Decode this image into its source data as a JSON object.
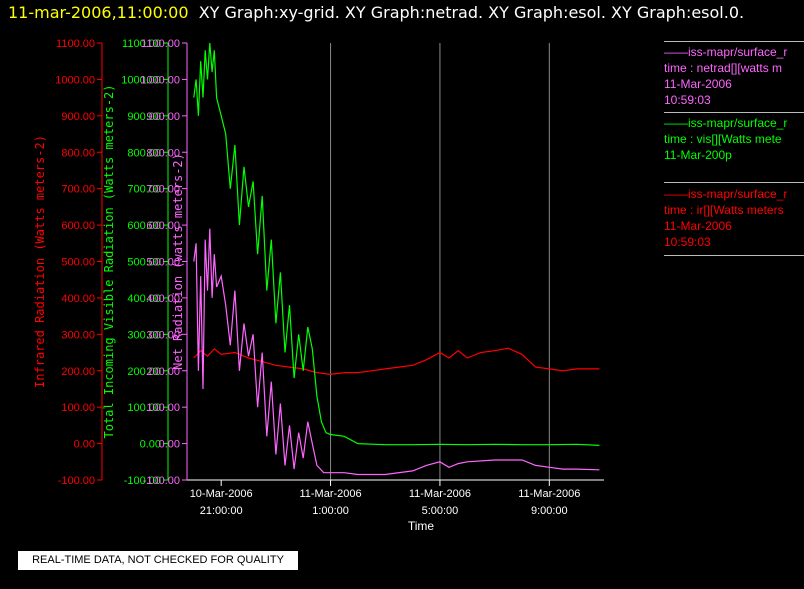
{
  "header": {
    "date_title": "11-mar-2006,11:00:00",
    "graph_titles": "XY Graph:xy-grid.  XY Graph:netrad.  XY Graph:esol.  XY Graph:esol.0."
  },
  "legend": {
    "netrad": {
      "line1": "——iss-mapr/surface_r",
      "line2": "time : netrad[][watts m",
      "line3": "11-Mar-2006",
      "line4": "10:59:03",
      "color": "#ff66ff"
    },
    "vis": {
      "line1": "——iss-mapr/surface_r",
      "line2": "time : vis[][Watts mete",
      "line3": "11-Mar-200p",
      "color": "#00ff00"
    },
    "ir": {
      "line1": "——iss-mapr/surface_r",
      "line2": "time : ir[][Watts meters",
      "line3": "11-Mar-2006",
      "line4": "10:59:03",
      "color": "#ff0000"
    }
  },
  "footer": {
    "note": "REAL-TIME DATA, NOT CHECKED FOR QUALITY"
  },
  "chart_data": {
    "type": "line",
    "xlabel": "Time",
    "x_range": [
      "2006-03-10 19:45",
      "2006-03-11 11:00"
    ],
    "x_ticks": [
      {
        "x": "2006-03-10 21:00",
        "label_line1": "10-Mar-2006",
        "label_line2": "21:00:00"
      },
      {
        "x": "2006-03-11 01:00",
        "label_line1": "11-Mar-2006",
        "label_line2": "1:00:00"
      },
      {
        "x": "2006-03-11 05:00",
        "label_line1": "11-Mar-2006",
        "label_line2": "5:00:00"
      },
      {
        "x": "2006-03-11 09:00",
        "label_line1": "11-Mar-2006",
        "label_line2": "9:00:00"
      }
    ],
    "grid": "vertical",
    "ylim": [
      -100,
      1100
    ],
    "y_ticks": [
      "-100.00",
      "0.00",
      "100.00",
      "200.00",
      "300.00",
      "400.00",
      "500.00",
      "600.00",
      "700.00",
      "800.00",
      "900.00",
      "1000.00",
      "1100.00"
    ],
    "axes": [
      {
        "key": "ir",
        "label": "Infrared Radiation (Watts meters-2)",
        "color": "#ff0000"
      },
      {
        "key": "vis",
        "label": "Total Incoming Visible Radiation (Watts meters-2)",
        "color": "#00ff00"
      },
      {
        "key": "netrad",
        "label": "Net Radiation (watts meters-2)",
        "color": "#ff66ff"
      }
    ],
    "series": [
      {
        "key": "ir",
        "color": "#ff0000",
        "points": [
          [
            "2006-03-10 20:00",
            235
          ],
          [
            "2006-03-10 20:15",
            255
          ],
          [
            "2006-03-10 20:30",
            240
          ],
          [
            "2006-03-10 20:45",
            260
          ],
          [
            "2006-03-10 21:00",
            245
          ],
          [
            "2006-03-10 21:30",
            250
          ],
          [
            "2006-03-10 22:00",
            235
          ],
          [
            "2006-03-10 22:30",
            225
          ],
          [
            "2006-03-10 23:00",
            215
          ],
          [
            "2006-03-10 23:30",
            210
          ],
          [
            "2006-03-11 00:00",
            205
          ],
          [
            "2006-03-11 00:30",
            195
          ],
          [
            "2006-03-11 01:00",
            190
          ],
          [
            "2006-03-11 01:30",
            195
          ],
          [
            "2006-03-11 02:00",
            195
          ],
          [
            "2006-03-11 02:30",
            200
          ],
          [
            "2006-03-11 03:00",
            205
          ],
          [
            "2006-03-11 03:30",
            210
          ],
          [
            "2006-03-11 04:00",
            215
          ],
          [
            "2006-03-11 04:30",
            230
          ],
          [
            "2006-03-11 05:00",
            250
          ],
          [
            "2006-03-11 05:20",
            235
          ],
          [
            "2006-03-11 05:40",
            255
          ],
          [
            "2006-03-11 06:00",
            235
          ],
          [
            "2006-03-11 06:30",
            250
          ],
          [
            "2006-03-11 07:00",
            255
          ],
          [
            "2006-03-11 07:30",
            262
          ],
          [
            "2006-03-11 08:00",
            245
          ],
          [
            "2006-03-11 08:30",
            210
          ],
          [
            "2006-03-11 09:00",
            205
          ],
          [
            "2006-03-11 09:30",
            200
          ],
          [
            "2006-03-11 10:00",
            205
          ],
          [
            "2006-03-11 10:30",
            205
          ],
          [
            "2006-03-11 10:50",
            205
          ]
        ]
      },
      {
        "key": "vis",
        "color": "#00ff00",
        "points": [
          [
            "2006-03-10 20:00",
            950
          ],
          [
            "2006-03-10 20:05",
            1000
          ],
          [
            "2006-03-10 20:10",
            900
          ],
          [
            "2006-03-10 20:15",
            1050
          ],
          [
            "2006-03-10 20:20",
            950
          ],
          [
            "2006-03-10 20:25",
            1080
          ],
          [
            "2006-03-10 20:30",
            1000
          ],
          [
            "2006-03-10 20:35",
            1100
          ],
          [
            "2006-03-10 20:40",
            1020
          ],
          [
            "2006-03-10 20:45",
            1080
          ],
          [
            "2006-03-10 20:50",
            950
          ],
          [
            "2006-03-10 21:00",
            900
          ],
          [
            "2006-03-10 21:10",
            850
          ],
          [
            "2006-03-10 21:20",
            700
          ],
          [
            "2006-03-10 21:30",
            820
          ],
          [
            "2006-03-10 21:40",
            600
          ],
          [
            "2006-03-10 21:50",
            760
          ],
          [
            "2006-03-10 22:00",
            650
          ],
          [
            "2006-03-10 22:10",
            720
          ],
          [
            "2006-03-10 22:20",
            520
          ],
          [
            "2006-03-10 22:30",
            680
          ],
          [
            "2006-03-10 22:40",
            420
          ],
          [
            "2006-03-10 22:50",
            560
          ],
          [
            "2006-03-10 23:00",
            330
          ],
          [
            "2006-03-10 23:10",
            470
          ],
          [
            "2006-03-10 23:20",
            250
          ],
          [
            "2006-03-10 23:30",
            380
          ],
          [
            "2006-03-10 23:40",
            180
          ],
          [
            "2006-03-10 23:50",
            300
          ],
          [
            "2006-03-11 00:00",
            200
          ],
          [
            "2006-03-11 00:10",
            320
          ],
          [
            "2006-03-11 00:20",
            260
          ],
          [
            "2006-03-11 00:30",
            130
          ],
          [
            "2006-03-11 00:40",
            60
          ],
          [
            "2006-03-11 00:50",
            30
          ],
          [
            "2006-03-11 01:00",
            25
          ],
          [
            "2006-03-11 01:30",
            20
          ],
          [
            "2006-03-11 02:00",
            0
          ],
          [
            "2006-03-11 03:00",
            -3
          ],
          [
            "2006-03-11 04:00",
            -3
          ],
          [
            "2006-03-11 05:00",
            -2
          ],
          [
            "2006-03-11 06:00",
            -3
          ],
          [
            "2006-03-11 07:00",
            -2
          ],
          [
            "2006-03-11 08:00",
            -3
          ],
          [
            "2006-03-11 09:00",
            -3
          ],
          [
            "2006-03-11 10:00",
            -2
          ],
          [
            "2006-03-11 10:50",
            -5
          ]
        ]
      },
      {
        "key": "netrad",
        "color": "#ff66ff",
        "points": [
          [
            "2006-03-10 20:00",
            500
          ],
          [
            "2006-03-10 20:05",
            550
          ],
          [
            "2006-03-10 20:10",
            200
          ],
          [
            "2006-03-10 20:15",
            460
          ],
          [
            "2006-03-10 20:20",
            150
          ],
          [
            "2006-03-10 20:25",
            560
          ],
          [
            "2006-03-10 20:30",
            420
          ],
          [
            "2006-03-10 20:35",
            590
          ],
          [
            "2006-03-10 20:40",
            400
          ],
          [
            "2006-03-10 20:45",
            520
          ],
          [
            "2006-03-10 20:50",
            430
          ],
          [
            "2006-03-10 21:00",
            460
          ],
          [
            "2006-03-10 21:10",
            380
          ],
          [
            "2006-03-10 21:20",
            270
          ],
          [
            "2006-03-10 21:30",
            420
          ],
          [
            "2006-03-10 21:40",
            200
          ],
          [
            "2006-03-10 21:50",
            330
          ],
          [
            "2006-03-10 22:00",
            240
          ],
          [
            "2006-03-10 22:10",
            300
          ],
          [
            "2006-03-10 22:20",
            100
          ],
          [
            "2006-03-10 22:30",
            250
          ],
          [
            "2006-03-10 22:40",
            20
          ],
          [
            "2006-03-10 22:50",
            170
          ],
          [
            "2006-03-10 23:00",
            -30
          ],
          [
            "2006-03-10 23:10",
            110
          ],
          [
            "2006-03-10 23:20",
            -60
          ],
          [
            "2006-03-10 23:30",
            50
          ],
          [
            "2006-03-10 23:40",
            -70
          ],
          [
            "2006-03-10 23:50",
            30
          ],
          [
            "2006-03-11 00:00",
            -40
          ],
          [
            "2006-03-11 00:10",
            60
          ],
          [
            "2006-03-11 00:20",
            0
          ],
          [
            "2006-03-11 00:30",
            -60
          ],
          [
            "2006-03-11 00:45",
            -80
          ],
          [
            "2006-03-11 01:00",
            -80
          ],
          [
            "2006-03-11 01:30",
            -80
          ],
          [
            "2006-03-11 02:00",
            -85
          ],
          [
            "2006-03-11 03:00",
            -85
          ],
          [
            "2006-03-11 04:00",
            -75
          ],
          [
            "2006-03-11 04:30",
            -60
          ],
          [
            "2006-03-11 05:00",
            -50
          ],
          [
            "2006-03-11 05:20",
            -65
          ],
          [
            "2006-03-11 05:40",
            -55
          ],
          [
            "2006-03-11 06:00",
            -50
          ],
          [
            "2006-03-11 07:00",
            -45
          ],
          [
            "2006-03-11 08:00",
            -45
          ],
          [
            "2006-03-11 08:30",
            -60
          ],
          [
            "2006-03-11 09:00",
            -65
          ],
          [
            "2006-03-11 09:30",
            -70
          ],
          [
            "2006-03-11 10:00",
            -70
          ],
          [
            "2006-03-11 10:50",
            -72
          ]
        ]
      }
    ]
  }
}
